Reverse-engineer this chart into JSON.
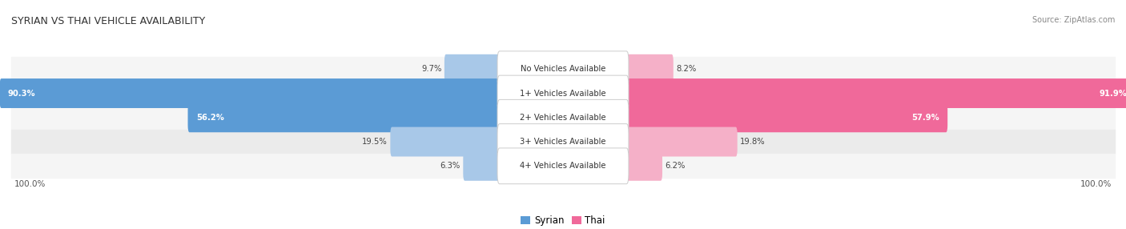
{
  "title": "SYRIAN VS THAI VEHICLE AVAILABILITY",
  "source": "Source: ZipAtlas.com",
  "categories": [
    "No Vehicles Available",
    "1+ Vehicles Available",
    "2+ Vehicles Available",
    "3+ Vehicles Available",
    "4+ Vehicles Available"
  ],
  "syrian_values": [
    9.7,
    90.3,
    56.2,
    19.5,
    6.3
  ],
  "thai_values": [
    8.2,
    91.9,
    57.9,
    19.8,
    6.2
  ],
  "syrian_color_strong": "#5b9bd5",
  "thai_color_strong": "#f0699a",
  "syrian_color_light": "#a8c8e8",
  "thai_color_light": "#f5b0c8",
  "bar_height": 0.62,
  "row_colors": [
    "#f5f5f5",
    "#ebebeb"
  ],
  "legend_label_syrian": "Syrian",
  "legend_label_thai": "Thai",
  "label_zone_half": 11.5,
  "max_val": 100.0,
  "strong_threshold": 20
}
